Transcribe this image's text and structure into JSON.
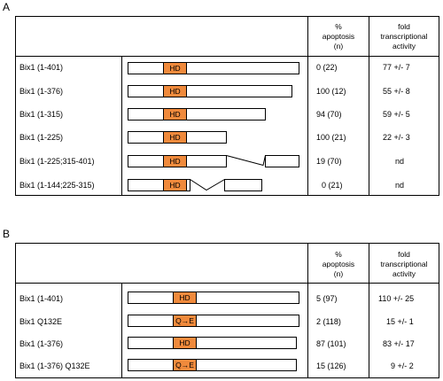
{
  "panel_a": {
    "letter": "A",
    "header": {
      "apoptosis": [
        "%",
        "apoptosis",
        "(n)"
      ],
      "activity": [
        "fold",
        "transcriptional",
        "activity"
      ]
    },
    "rows": [
      {
        "label": "Bix1 (1-401)",
        "apoptosis": "0 (22)",
        "activity": "77 +/- 7",
        "hd": "HD"
      },
      {
        "label": "Bix1 (1-376)",
        "apoptosis": "100 (12)",
        "activity": "55 +/- 8",
        "hd": "HD"
      },
      {
        "label": "Bix1 (1-315)",
        "apoptosis": "94 (70)",
        "activity": "59 +/- 5",
        "hd": "HD"
      },
      {
        "label": "Bix1 (1-225)",
        "apoptosis": "100 (21)",
        "activity": "22 +/- 3",
        "hd": "HD"
      },
      {
        "label": "Bix1 (1-225;315-401)",
        "apoptosis": "19 (70)",
        "activity": "nd",
        "hd": "HD"
      },
      {
        "label": "Bix1 (1-144;225-315)",
        "apoptosis": "0 (21)",
        "activity": "nd",
        "hd": "HD"
      }
    ]
  },
  "panel_b": {
    "letter": "B",
    "header": {
      "apoptosis": [
        "%",
        "apoptosis",
        "(n)"
      ],
      "activity": [
        "fold",
        "transcriptional",
        "activity"
      ]
    },
    "rows": [
      {
        "label": "Bix1 (1-401)",
        "apoptosis": "5 (97)",
        "activity": "110 +/- 25",
        "hd": "HD"
      },
      {
        "label": "Bix1 Q132E",
        "apoptosis": "2 (118)",
        "activity": "15 +/- 1",
        "hd": "Q→E"
      },
      {
        "label": "Bix1 (1-376)",
        "apoptosis": "87 (101)",
        "activity": "83 +/- 17",
        "hd": "HD"
      },
      {
        "label": "Bix1 (1-376) Q132E",
        "apoptosis": "15 (126)",
        "activity": "9 +/- 2",
        "hd": "Q→E"
      }
    ]
  },
  "colors": {
    "hd_box": "#f08a3c",
    "line": "#000000"
  }
}
